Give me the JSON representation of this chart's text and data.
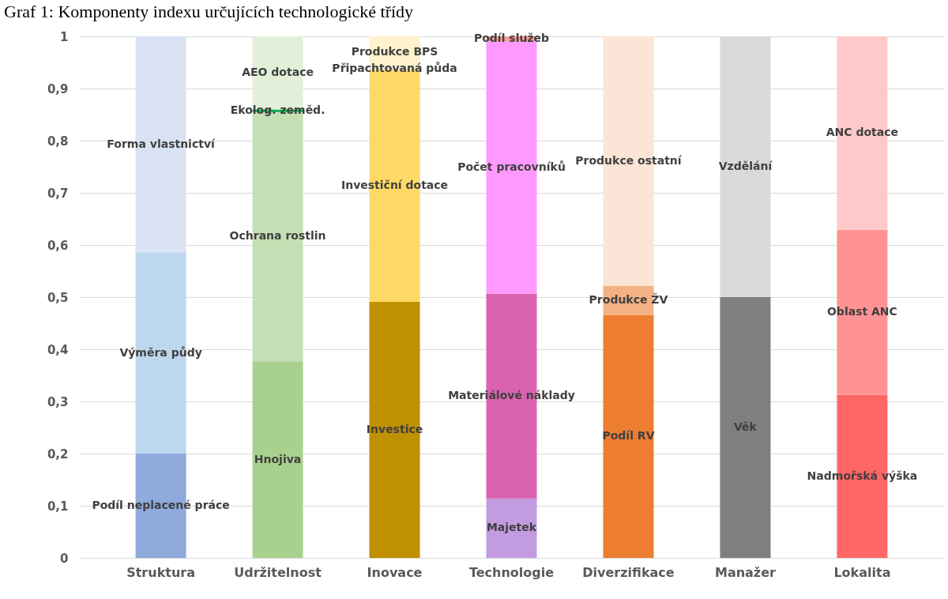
{
  "chart_data": {
    "type": "bar",
    "title": "Graf 1: Komponenty indexu určujících technologické třídy",
    "stacked": true,
    "grid": "y",
    "categories": [
      "Struktura",
      "Udržitelnost",
      "Inovace",
      "Technologie",
      "Diverzifikace",
      "Manažer",
      "Lokalita"
    ],
    "ylim": [
      0,
      1
    ],
    "yticks": [
      0,
      {
        "value": 0.1,
        "label": "0,1"
      },
      {
        "value": 0.2,
        "label": "0,2"
      },
      {
        "value": 0.3,
        "label": "0,3"
      },
      {
        "value": 0.4,
        "label": "0,4"
      },
      {
        "value": 0.5,
        "label": "0,5"
      },
      {
        "value": 0.6,
        "label": "0,6"
      },
      {
        "value": 0.7,
        "label": "0,7"
      },
      {
        "value": 0.8,
        "label": "0,8"
      },
      {
        "value": 0.9,
        "label": "0,9"
      },
      1
    ],
    "series": [
      {
        "values": [
          0.2,
          0.377,
          0.491,
          0.114,
          0.466,
          0.5,
          0.313
        ],
        "colors": [
          "#8faadc",
          "#a9d18e",
          "#bf9000",
          "#c39be0",
          "#ed7d31",
          "#7f7f7f",
          "#ff6666"
        ],
        "value_labels": [
          "Podíl neplacené práce",
          "Hnojiva",
          "Investice",
          "Majetek",
          "Podíl RV",
          "Věk",
          "Nadmořská výška"
        ]
      },
      {
        "values": [
          0.386,
          0.478,
          0.445,
          0.393,
          0.056,
          0.5,
          0.316
        ],
        "colors": [
          "#bdd7ee",
          "#c5e0b4",
          "#ffd966",
          "#d963b0",
          "#f4b183",
          "#d9d9d9",
          "#ff9393"
        ],
        "value_labels": [
          "Výměra půdy",
          "Ochrana rostlin",
          "Investiční dotace",
          "Materiálové náklady",
          "Produkce ŽV",
          "Vzdělání",
          "Oblast ANC"
        ]
      },
      {
        "values": [
          0.414,
          0.005,
          0.003,
          0.483,
          0.478,
          null,
          0.371
        ],
        "colors": [
          "#dae3f3",
          "#00b050",
          "#d9d9d9",
          "#ff99ff",
          "#fbe5d6",
          null,
          "#ffc9c9"
        ],
        "value_labels": [
          "Forma vlastnictví",
          "Ekolog. zeměd.",
          "Připachtovaná půda",
          "Počet pracovníků",
          "Produkce ostatní",
          null,
          "ANC dotace"
        ]
      },
      {
        "values": [
          null,
          0.14,
          0.061,
          0.01,
          null,
          null,
          null
        ],
        "colors": [
          null,
          "#e2f0d9",
          "#fff2cc",
          "#ff9999",
          null,
          null,
          null
        ],
        "value_labels": [
          null,
          "AEO dotace",
          "Produkce BPS",
          "Podíl služeb",
          null,
          null,
          null
        ]
      }
    ]
  }
}
